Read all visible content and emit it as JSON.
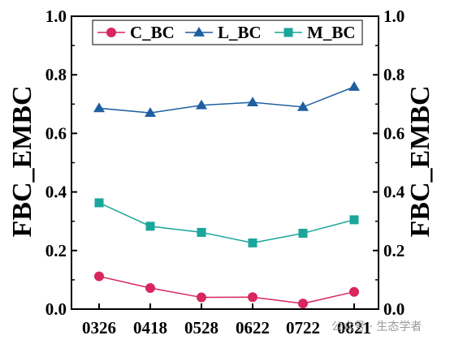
{
  "chart_data": {
    "type": "line",
    "title": "",
    "xlabel": "",
    "ylabel": "FBC_EMBC",
    "ylabel_right": "FBC_EMBC",
    "categories": [
      "0326",
      "0418",
      "0528",
      "0622",
      "0722",
      "0821"
    ],
    "ylim": [
      0.0,
      1.0
    ],
    "yticks": [
      "0.0",
      "0.2",
      "0.4",
      "0.6",
      "0.8",
      "1.0"
    ],
    "grid": false,
    "legend_position": "top",
    "series": [
      {
        "name": "C_BC",
        "marker": "circle",
        "color": "#d8265e",
        "values": [
          0.112,
          0.072,
          0.04,
          0.041,
          0.019,
          0.059
        ]
      },
      {
        "name": "L_BC",
        "marker": "triangle",
        "color": "#1f5fa0",
        "values": [
          0.686,
          0.67,
          0.696,
          0.706,
          0.69,
          0.759
        ]
      },
      {
        "name": "M_BC",
        "marker": "square",
        "color": "#1aa69b",
        "values": [
          0.363,
          0.283,
          0.262,
          0.226,
          0.259,
          0.305
        ]
      }
    ]
  },
  "watermark": "公众号 · 生态学者"
}
